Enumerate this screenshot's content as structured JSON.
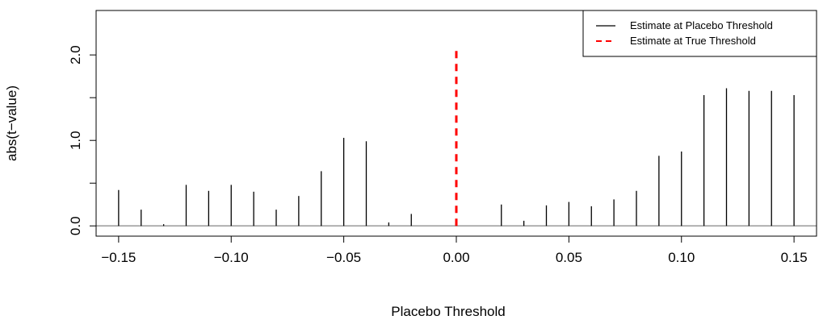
{
  "chart_data": {
    "type": "bar",
    "title": "",
    "xlabel": "Placebo Threshold",
    "ylabel": "abs(t−value)",
    "xlim": [
      -0.16,
      0.16
    ],
    "ylim": [
      -0.12,
      2.52
    ],
    "x_ticks": [
      {
        "value": -0.15,
        "label": "−0.15"
      },
      {
        "value": -0.1,
        "label": "−0.10"
      },
      {
        "value": -0.05,
        "label": "−0.05"
      },
      {
        "value": 0.0,
        "label": "0.00"
      },
      {
        "value": 0.05,
        "label": "0.05"
      },
      {
        "value": 0.1,
        "label": "0.10"
      },
      {
        "value": 0.15,
        "label": "0.15"
      }
    ],
    "y_ticks": [
      {
        "value": 0.0,
        "label": "0.0"
      },
      {
        "value": 0.5,
        "label": ""
      },
      {
        "value": 1.0,
        "label": "1.0"
      },
      {
        "value": 1.5,
        "label": ""
      },
      {
        "value": 2.0,
        "label": "2.0"
      }
    ],
    "series": [
      {
        "name": "Estimate at Placebo Threshold",
        "color": "#000000",
        "style": "solid",
        "x": [
          -0.15,
          -0.14,
          -0.13,
          -0.12,
          -0.11,
          -0.1,
          -0.09,
          -0.08,
          -0.07,
          -0.06,
          -0.05,
          -0.04,
          -0.03,
          -0.02,
          0.02,
          0.03,
          0.04,
          0.05,
          0.06,
          0.07,
          0.08,
          0.09,
          0.1,
          0.11,
          0.12,
          0.13,
          0.14,
          0.15
        ],
        "values": [
          0.42,
          0.19,
          0.02,
          0.48,
          0.41,
          0.48,
          0.4,
          0.19,
          0.35,
          0.64,
          1.03,
          0.99,
          0.04,
          0.14,
          0.25,
          0.06,
          0.24,
          0.28,
          0.23,
          0.31,
          0.41,
          0.82,
          0.87,
          1.53,
          1.61,
          1.58,
          1.58,
          1.53
        ]
      },
      {
        "name": "Estimate at True Threshold",
        "color": "#ff0000",
        "style": "dashed",
        "x": [
          0.0
        ],
        "values": [
          2.1
        ]
      }
    ],
    "reference_line": {
      "y": 0.0,
      "color": "#999999"
    },
    "legend": {
      "position": "top-right"
    },
    "grid": false
  }
}
